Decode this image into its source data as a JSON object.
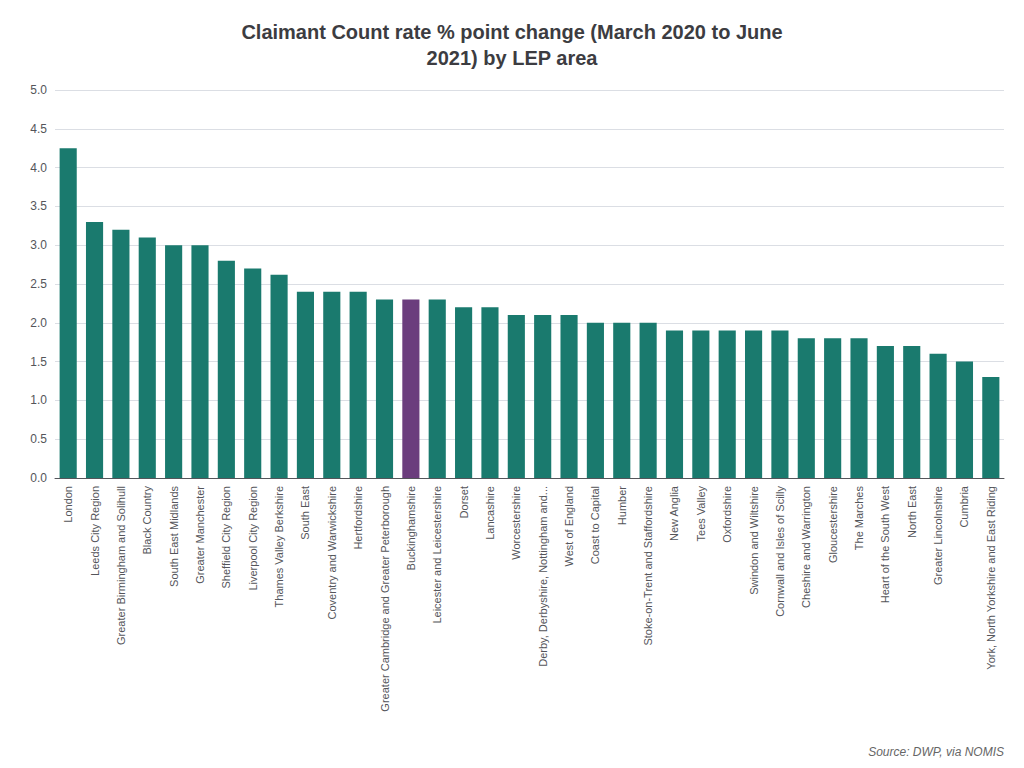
{
  "chart_data": {
    "type": "bar",
    "title": "Claimant Count rate % point change (March 2020 to June\n2021) by LEP area",
    "annotation": "Source: DWP, via NOMIS",
    "categories": [
      "London",
      "Leeds City Region",
      "Greater Birmingham and Solihull",
      "Black Country",
      "South East Midlands",
      "Greater Manchester",
      "Sheffield City Region",
      "Liverpool City Region",
      "Thames Valley Berkshire",
      "South East",
      "Coventry and Warwickshire",
      "Hertfordshire",
      "Greater Cambridge and Greater Peterborough",
      "Buckinghamshire",
      "Leicester and Leicestershire",
      "Dorset",
      "Lancashire",
      "Worcestershire",
      "Derby, Derbyshire, Nottingham and...",
      "West of England",
      "Coast to Capital",
      "Humber",
      "Stoke-on-Trent and Staffordshire",
      "New Anglia",
      "Tees Valley",
      "Oxfordshire",
      "Swindon and Wiltshire",
      "Cornwall and Isles of Scilly",
      "Cheshire and Warrington",
      "Gloucestershire",
      "The Marches",
      "Heart of the South West",
      "North East",
      "Greater Lincolnshire",
      "Cumbria",
      "York, North Yorkshire and East Riding"
    ],
    "values": [
      4.25,
      3.3,
      3.2,
      3.1,
      3.0,
      3.0,
      2.8,
      2.7,
      2.62,
      2.4,
      2.4,
      2.4,
      2.3,
      2.3,
      2.3,
      2.2,
      2.2,
      2.1,
      2.1,
      2.1,
      2.0,
      2.0,
      2.0,
      1.9,
      1.9,
      1.9,
      1.9,
      1.9,
      1.8,
      1.8,
      1.8,
      1.7,
      1.7,
      1.6,
      1.5,
      1.3
    ],
    "colors": [
      "#1a7a6e",
      "#1a7a6e",
      "#1a7a6e",
      "#1a7a6e",
      "#1a7a6e",
      "#1a7a6e",
      "#1a7a6e",
      "#1a7a6e",
      "#1a7a6e",
      "#1a7a6e",
      "#1a7a6e",
      "#1a7a6e",
      "#1a7a6e",
      "#6b3d7d",
      "#1a7a6e",
      "#1a7a6e",
      "#1a7a6e",
      "#1a7a6e",
      "#1a7a6e",
      "#1a7a6e",
      "#1a7a6e",
      "#1a7a6e",
      "#1a7a6e",
      "#1a7a6e",
      "#1a7a6e",
      "#1a7a6e",
      "#1a7a6e",
      "#1a7a6e",
      "#1a7a6e",
      "#1a7a6e",
      "#1a7a6e",
      "#1a7a6e",
      "#1a7a6e",
      "#1a7a6e",
      "#1a7a6e",
      "#1a7a6e"
    ],
    "ylim": [
      0,
      5.0
    ],
    "yticks": [
      {
        "value": 0,
        "label": "0.0"
      },
      0.5,
      {
        "value": 1,
        "label": "1.0"
      },
      1.5,
      {
        "value": 2,
        "label": "2.0"
      },
      2.5,
      {
        "value": 3,
        "label": "3.0"
      },
      3.5,
      {
        "value": 4,
        "label": "4.0"
      },
      4.5,
      {
        "value": 5,
        "label": "5.0"
      }
    ],
    "grid": true
  }
}
